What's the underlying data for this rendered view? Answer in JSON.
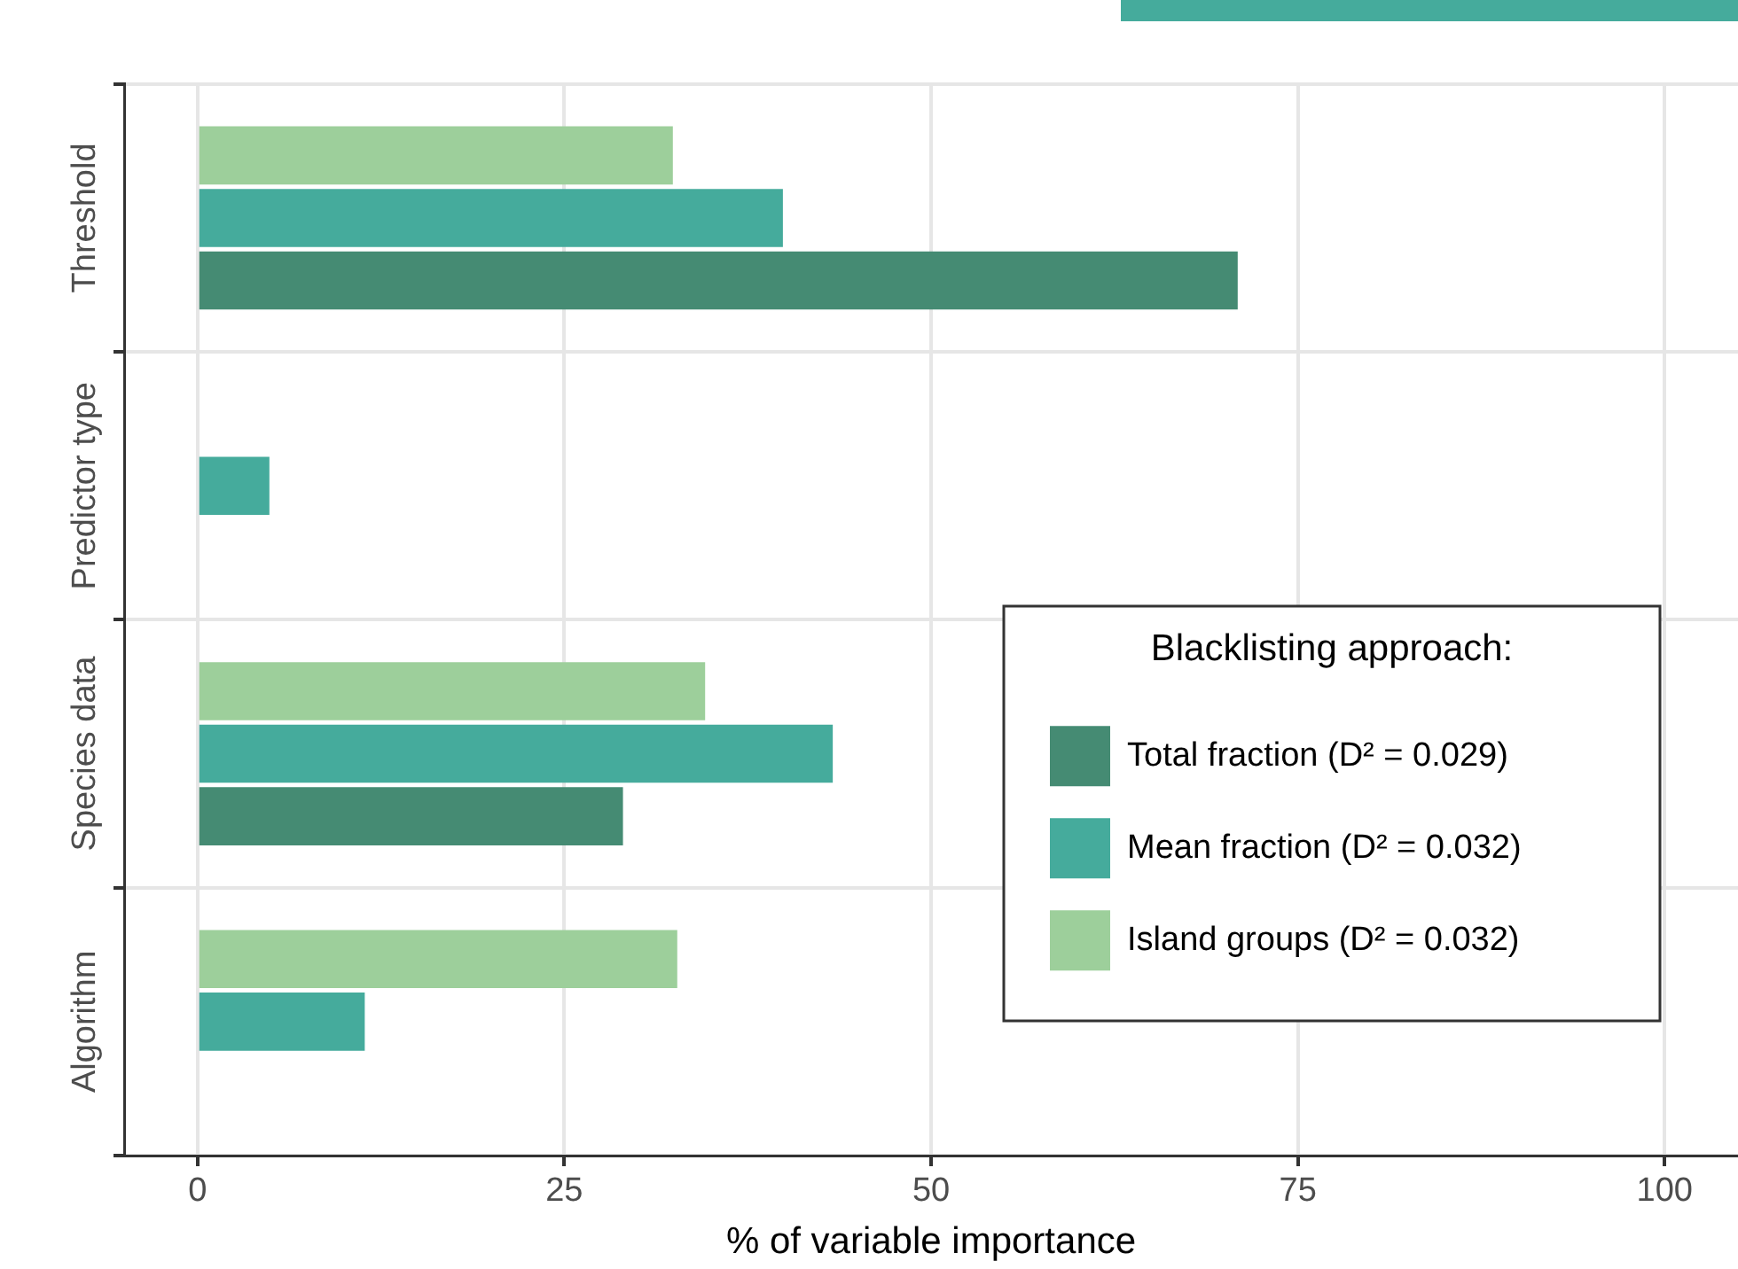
{
  "chart_data": {
    "type": "bar",
    "orientation": "horizontal",
    "xlabel": "% of variable importance",
    "legend_title": "Blacklisting approach:",
    "categories": [
      "Threshold",
      "Predictor type",
      "Species data",
      "Algorithm"
    ],
    "series": [
      {
        "name": "Total fraction (D² = 0.029)",
        "color": "#458b73",
        "values": [
          70.9,
          null,
          29.0,
          null
        ]
      },
      {
        "name": "Mean fraction (D² = 0.032)",
        "color": "#45ab9c",
        "values": [
          39.9,
          4.9,
          43.3,
          11.4
        ]
      },
      {
        "name": "Island groups (D² = 0.032)",
        "color": "#9dcf9b",
        "values": [
          32.4,
          null,
          34.6,
          32.7
        ]
      }
    ],
    "xlim": [
      -5,
      105
    ],
    "xticks": [
      0,
      25,
      50,
      75,
      100
    ],
    "grid": true,
    "legend": "bottom right"
  }
}
